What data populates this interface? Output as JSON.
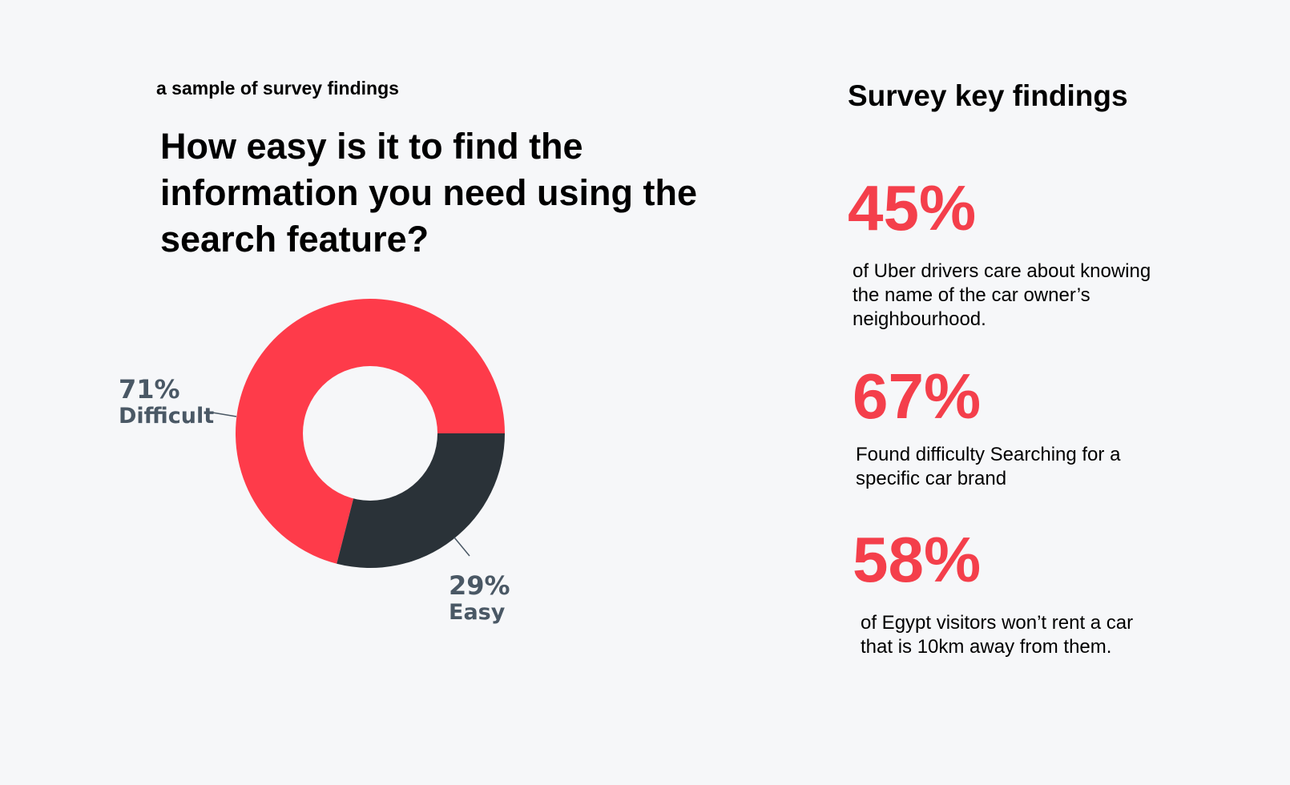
{
  "left": {
    "caption": "a sample of survey findings",
    "question_lines": [
      "How easy is it to find the",
      "information you need using the",
      "search feature?"
    ]
  },
  "chart_data": {
    "type": "pie",
    "title": "How easy is it to find the information you need using the search feature?",
    "slices": [
      {
        "label": "Difficult",
        "value": 71,
        "pct_label": "71%",
        "color": "#fe3b4a"
      },
      {
        "label": "Easy",
        "value": 29,
        "pct_label": "29%",
        "color": "#2a3238"
      }
    ],
    "hole_color": "#f6f7f9",
    "label_color": "#4a5865"
  },
  "right": {
    "title": "Survey key findings",
    "accent_color": "#f43f4b",
    "findings": [
      {
        "value": "45%",
        "text": "of Uber drivers care about knowing the name of the car owner’s neighbourhood."
      },
      {
        "value": "67%",
        "text": "Found difficulty Searching for a specific car brand"
      },
      {
        "value": "58%",
        "text": "of Egypt visitors won’t rent a car that is 10km away from them."
      }
    ]
  }
}
